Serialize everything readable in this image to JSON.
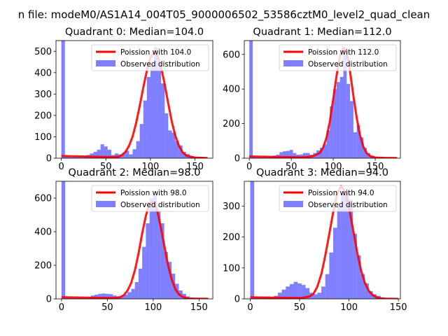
{
  "figure": {
    "suptitle": "n file: modeM0/AS1A14_004T05_9000006502_53586cztM0_level2_quad_clean"
  },
  "chart_data": [
    {
      "type": "bar",
      "title": "Quadrant 0: Median=104.0",
      "xlim": [
        -6,
        170
      ],
      "ylim": [
        0,
        550
      ],
      "xticks": [
        0,
        50,
        100,
        150
      ],
      "yticks": [
        0,
        100,
        200,
        300,
        400,
        500
      ],
      "legend": [
        "Poission with 104.0",
        "Observed distribution"
      ],
      "legend_position": "top-right",
      "bin_width": 4,
      "bins": [
        0,
        4,
        8,
        12,
        16,
        20,
        24,
        28,
        32,
        36,
        40,
        44,
        48,
        52,
        56,
        60,
        64,
        68,
        72,
        76,
        80,
        84,
        88,
        92,
        96,
        100,
        104,
        108,
        112,
        116,
        120,
        124,
        128,
        132,
        136,
        140,
        144,
        148,
        152,
        156,
        160
      ],
      "observed": [
        550,
        10,
        6,
        5,
        7,
        6,
        10,
        15,
        22,
        30,
        40,
        65,
        55,
        40,
        15,
        22,
        18,
        25,
        35,
        18,
        42,
        80,
        160,
        270,
        380,
        440,
        520,
        450,
        350,
        210,
        130,
        120,
        80,
        60,
        30,
        20,
        10,
        5,
        5,
        3,
        2
      ],
      "poisson_x": [
        0,
        56,
        64,
        68,
        72,
        76,
        80,
        84,
        88,
        92,
        96,
        100,
        104,
        108,
        112,
        116,
        120,
        124,
        128,
        132,
        136,
        140,
        150,
        164
      ],
      "poisson_y": [
        10,
        5,
        7,
        14,
        30,
        58,
        102,
        165,
        245,
        330,
        410,
        470,
        495,
        478,
        425,
        345,
        255,
        170,
        105,
        58,
        28,
        12,
        3,
        1
      ]
    },
    {
      "type": "bar",
      "title": "Quadrant 1: Median=112.0",
      "xlim": [
        -6,
        180
      ],
      "ylim": [
        0,
        680
      ],
      "xticks": [
        0,
        50,
        100,
        150
      ],
      "yticks": [
        0,
        200,
        400,
        600
      ],
      "legend": [
        "Poission with 112.0",
        "Observed distribution"
      ],
      "legend_position": "top-right",
      "bin_width": 4,
      "bins": [
        0,
        4,
        8,
        12,
        16,
        20,
        24,
        28,
        32,
        36,
        40,
        44,
        48,
        52,
        56,
        60,
        64,
        68,
        72,
        76,
        80,
        84,
        88,
        92,
        96,
        100,
        104,
        108,
        112,
        116,
        120,
        124,
        128,
        132,
        136,
        140,
        144,
        148,
        152,
        156,
        160,
        164,
        168
      ],
      "observed": [
        680,
        8,
        5,
        6,
        5,
        7,
        10,
        15,
        20,
        35,
        40,
        42,
        48,
        30,
        20,
        22,
        30,
        30,
        20,
        30,
        45,
        60,
        80,
        160,
        300,
        400,
        440,
        470,
        600,
        430,
        330,
        150,
        190,
        120,
        60,
        30,
        12,
        6,
        5,
        3,
        2,
        1,
        1
      ],
      "poisson_x": [
        0,
        60,
        68,
        76,
        84,
        88,
        92,
        96,
        100,
        104,
        108,
        112,
        116,
        120,
        124,
        128,
        132,
        136,
        140,
        144,
        150,
        160,
        176
      ],
      "poisson_y": [
        10,
        5,
        6,
        12,
        30,
        62,
        120,
        215,
        345,
        480,
        590,
        640,
        610,
        500,
        360,
        230,
        130,
        65,
        28,
        12,
        4,
        2,
        1
      ]
    },
    {
      "type": "bar",
      "title": "Quadrant 2: Median=98.0",
      "xlim": [
        -6,
        165
      ],
      "ylim": [
        0,
        700
      ],
      "xticks": [
        0,
        50,
        100,
        150
      ],
      "yticks": [
        0,
        200,
        400,
        600
      ],
      "legend": [
        "Poission with 98.0",
        "Observed distribution"
      ],
      "legend_position": "top-right",
      "bin_width": 4,
      "bins": [
        0,
        4,
        8,
        12,
        16,
        20,
        24,
        28,
        32,
        36,
        40,
        44,
        48,
        52,
        56,
        60,
        64,
        68,
        72,
        76,
        80,
        84,
        88,
        92,
        96,
        100,
        104,
        108,
        112,
        116,
        120,
        124,
        128,
        132,
        136,
        140,
        144,
        148,
        152,
        156
      ],
      "observed": [
        700,
        8,
        5,
        4,
        5,
        5,
        6,
        8,
        20,
        25,
        30,
        32,
        30,
        28,
        20,
        15,
        15,
        25,
        40,
        60,
        100,
        180,
        310,
        450,
        600,
        620,
        520,
        450,
        280,
        220,
        150,
        90,
        50,
        30,
        15,
        8,
        4,
        2,
        1,
        1
      ],
      "poisson_x": [
        0,
        56,
        64,
        68,
        72,
        76,
        80,
        84,
        88,
        92,
        96,
        100,
        104,
        108,
        112,
        116,
        120,
        124,
        128,
        132,
        136,
        140,
        150,
        160
      ],
      "poisson_y": [
        10,
        5,
        10,
        22,
        50,
        95,
        170,
        270,
        390,
        495,
        570,
        580,
        535,
        435,
        320,
        205,
        120,
        60,
        28,
        12,
        5,
        2,
        1,
        1
      ]
    },
    {
      "type": "bar",
      "title": "Quadrant 3: Median=94.0",
      "xlim": [
        -6,
        152
      ],
      "ylim": [
        0,
        380
      ],
      "xticks": [
        0,
        50,
        100,
        150
      ],
      "yticks": [
        0,
        100,
        200,
        300
      ],
      "legend": [
        "Poission with 94.0",
        "Observed distribution"
      ],
      "legend_position": "top-right",
      "bin_width": 4,
      "bins": [
        0,
        4,
        8,
        12,
        16,
        20,
        24,
        28,
        32,
        36,
        40,
        44,
        48,
        52,
        56,
        60,
        64,
        68,
        72,
        76,
        80,
        84,
        88,
        92,
        96,
        100,
        104,
        108,
        112,
        116,
        120,
        124,
        128,
        132,
        136,
        140,
        144
      ],
      "observed": [
        380,
        5,
        6,
        5,
        8,
        5,
        10,
        20,
        30,
        40,
        48,
        55,
        50,
        45,
        35,
        20,
        15,
        20,
        40,
        80,
        150,
        230,
        300,
        340,
        350,
        320,
        210,
        140,
        80,
        50,
        25,
        15,
        10,
        5,
        2,
        1,
        1
      ],
      "poisson_x": [
        0,
        52,
        60,
        64,
        68,
        72,
        76,
        80,
        84,
        88,
        92,
        96,
        100,
        104,
        108,
        112,
        116,
        120,
        124,
        128,
        132,
        136,
        150
      ],
      "poisson_y": [
        5,
        3,
        8,
        16,
        40,
        80,
        140,
        210,
        280,
        340,
        365,
        345,
        295,
        225,
        155,
        95,
        52,
        26,
        12,
        5,
        2,
        1,
        0
      ]
    }
  ]
}
